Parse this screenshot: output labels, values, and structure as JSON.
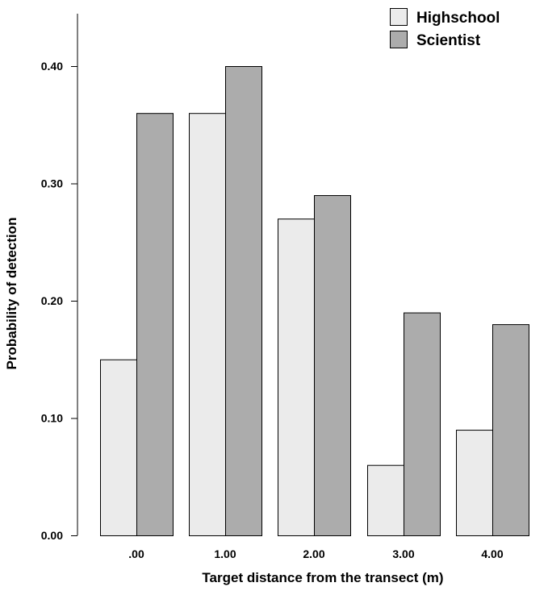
{
  "chart_data": {
    "type": "bar",
    "categories": [
      ".00",
      "1.00",
      "2.00",
      "3.00",
      "4.00"
    ],
    "series": [
      {
        "name": "Highschool",
        "values": [
          0.15,
          0.36,
          0.27,
          0.06,
          0.09
        ],
        "color": "#ebebeb"
      },
      {
        "name": "Scientist",
        "values": [
          0.36,
          0.4,
          0.29,
          0.19,
          0.18
        ],
        "color": "#acacac"
      }
    ],
    "xlabel": "Target distance from the transect (m)",
    "ylabel": "Probability of detection",
    "yticks": [
      "0.00",
      "0.10",
      "0.20",
      "0.30",
      "0.40"
    ],
    "ytick_values": [
      0,
      0.1,
      0.2,
      0.3,
      0.4
    ],
    "ylim": [
      0,
      0.44
    ],
    "legend_position": "top-right",
    "grid": false
  }
}
